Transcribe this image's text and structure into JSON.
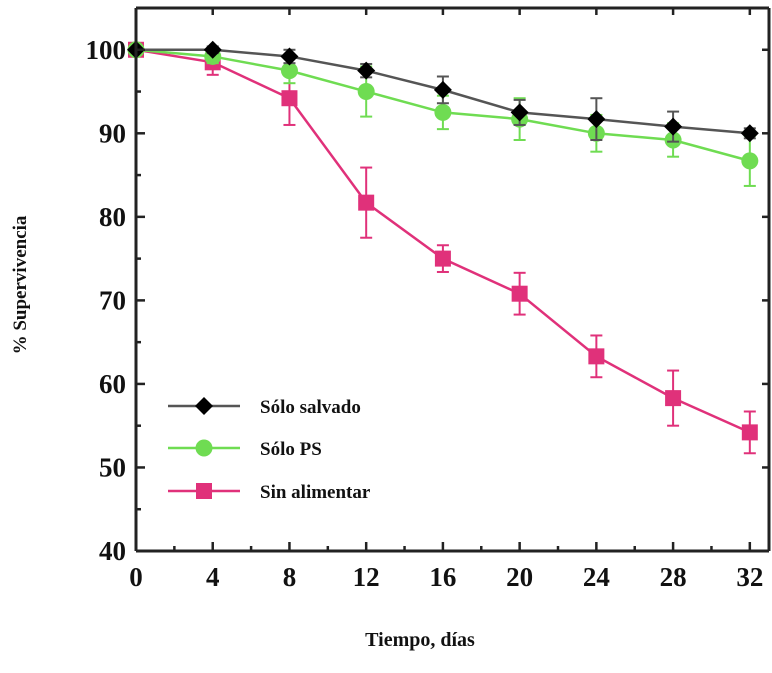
{
  "chart_data": {
    "type": "line",
    "xlabel": "Tiempo, días",
    "ylabel": "% Supervivencia",
    "xlim": [
      0,
      33
    ],
    "ylim": [
      40,
      105
    ],
    "x_ticks": [
      "0",
      "4",
      "8",
      "12",
      "16",
      "20",
      "24",
      "28",
      "32"
    ],
    "y_ticks": [
      "40",
      "50",
      "60",
      "70",
      "80",
      "90",
      "100"
    ],
    "grid": false,
    "legend_position": "bottom-left",
    "x": [
      0,
      4,
      8,
      12,
      16,
      20,
      24,
      28,
      32
    ],
    "series": [
      {
        "name": "Sólo salvado",
        "marker": "diamond",
        "color": "#000000",
        "line_color": "#555555",
        "values": [
          100,
          100,
          99.2,
          97.5,
          95.2,
          92.5,
          91.7,
          90.8,
          90.0
        ],
        "errors": [
          0,
          0.4,
          0.8,
          0.8,
          1.6,
          1.5,
          2.5,
          1.8,
          0.6
        ]
      },
      {
        "name": "Sólo PS",
        "marker": "circle",
        "color": "#6fdc52",
        "line_color": "#6fdc52",
        "values": [
          100,
          99.2,
          97.5,
          95.0,
          92.5,
          91.7,
          90.0,
          89.2,
          86.7
        ],
        "errors": [
          0,
          0.8,
          1.5,
          3.0,
          2.0,
          2.5,
          2.2,
          2.0,
          3.0
        ]
      },
      {
        "name": "Sin alimentar",
        "marker": "square",
        "color": "#e0317a",
        "line_color": "#e0317a",
        "values": [
          100,
          98.5,
          94.2,
          81.7,
          75.0,
          70.8,
          63.3,
          58.3,
          54.2
        ],
        "errors": [
          0,
          1.5,
          3.2,
          4.2,
          1.6,
          2.5,
          2.5,
          3.3,
          2.5
        ]
      }
    ]
  }
}
